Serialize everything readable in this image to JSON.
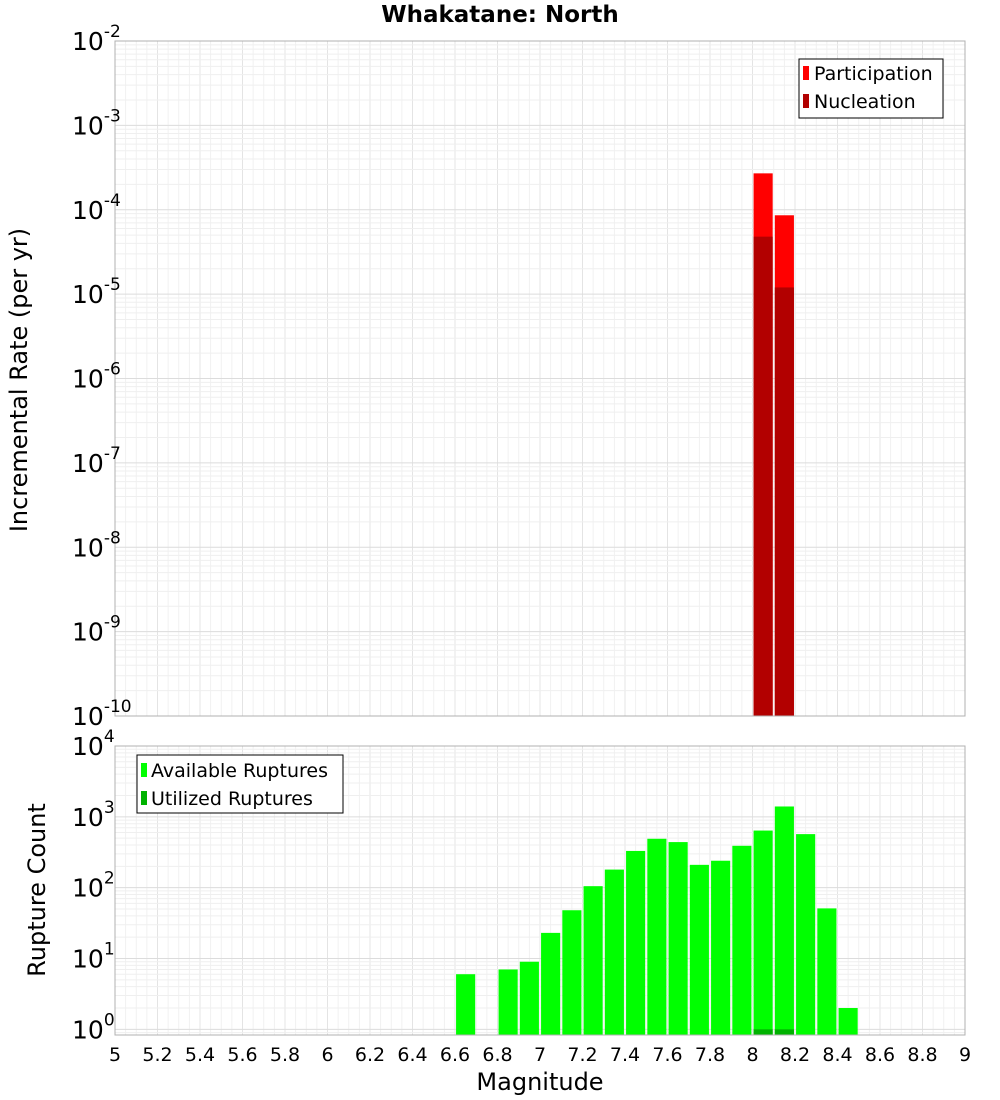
{
  "chart_data": [
    {
      "type": "bar",
      "title": "Whakatane: North",
      "xlabel": "",
      "ylabel": "Incremental Rate (per yr)",
      "yscale": "log",
      "ylim_exponent": [
        -10,
        -2
      ],
      "xlim": [
        5,
        9
      ],
      "bar_width": 0.09,
      "grid": true,
      "legend_position": "top-right",
      "y_ticks": [
        {
          "base": "10",
          "exp": "-2"
        },
        {
          "base": "10",
          "exp": "-3"
        },
        {
          "base": "10",
          "exp": "-4"
        },
        {
          "base": "10",
          "exp": "-5"
        },
        {
          "base": "10",
          "exp": "-6"
        },
        {
          "base": "10",
          "exp": "-7"
        },
        {
          "base": "10",
          "exp": "-8"
        },
        {
          "base": "10",
          "exp": "-9"
        },
        {
          "base": "10",
          "exp": "-10"
        }
      ],
      "series": [
        {
          "name": "Participation",
          "color": "#ff0000",
          "x": [
            8.05,
            8.15
          ],
          "values": [
            0.00027,
            8.6e-05
          ]
        },
        {
          "name": "Nucleation",
          "color": "#b20000",
          "x": [
            8.05,
            8.15
          ],
          "values": [
            4.8e-05,
            1.2e-05
          ]
        }
      ]
    },
    {
      "type": "bar",
      "title": "",
      "xlabel": "Magnitude",
      "ylabel": "Rupture Count",
      "yscale": "log",
      "ylim_exponent": [
        -0.08,
        4
      ],
      "xlim": [
        5,
        9
      ],
      "bar_width": 0.09,
      "grid": true,
      "legend_position": "top-left",
      "x_ticks": [
        "5",
        "5.2",
        "5.4",
        "5.6",
        "5.8",
        "6",
        "6.2",
        "6.4",
        "6.6",
        "6.8",
        "7",
        "7.2",
        "7.4",
        "7.6",
        "7.8",
        "8",
        "8.2",
        "8.4",
        "8.6",
        "8.8",
        "9"
      ],
      "y_ticks": [
        {
          "base": "10",
          "exp": "4"
        },
        {
          "base": "10",
          "exp": "3"
        },
        {
          "base": "10",
          "exp": "2"
        },
        {
          "base": "10",
          "exp": "1"
        },
        {
          "base": "10",
          "exp": "0"
        }
      ],
      "series": [
        {
          "name": "Available Ruptures",
          "color": "#00ff00",
          "x": [
            6.65,
            6.85,
            6.95,
            7.05,
            7.15,
            7.25,
            7.35,
            7.45,
            7.55,
            7.65,
            7.75,
            7.85,
            7.95,
            8.05,
            8.15,
            8.25,
            8.35,
            8.45
          ],
          "values": [
            6,
            7,
            9,
            23,
            48,
            105,
            180,
            330,
            490,
            440,
            210,
            240,
            390,
            640,
            1400,
            570,
            51,
            2
          ]
        },
        {
          "name": "Utilized Ruptures",
          "color": "#00b200",
          "x": [
            8.05,
            8.15
          ],
          "values": [
            1,
            1
          ]
        }
      ]
    }
  ]
}
